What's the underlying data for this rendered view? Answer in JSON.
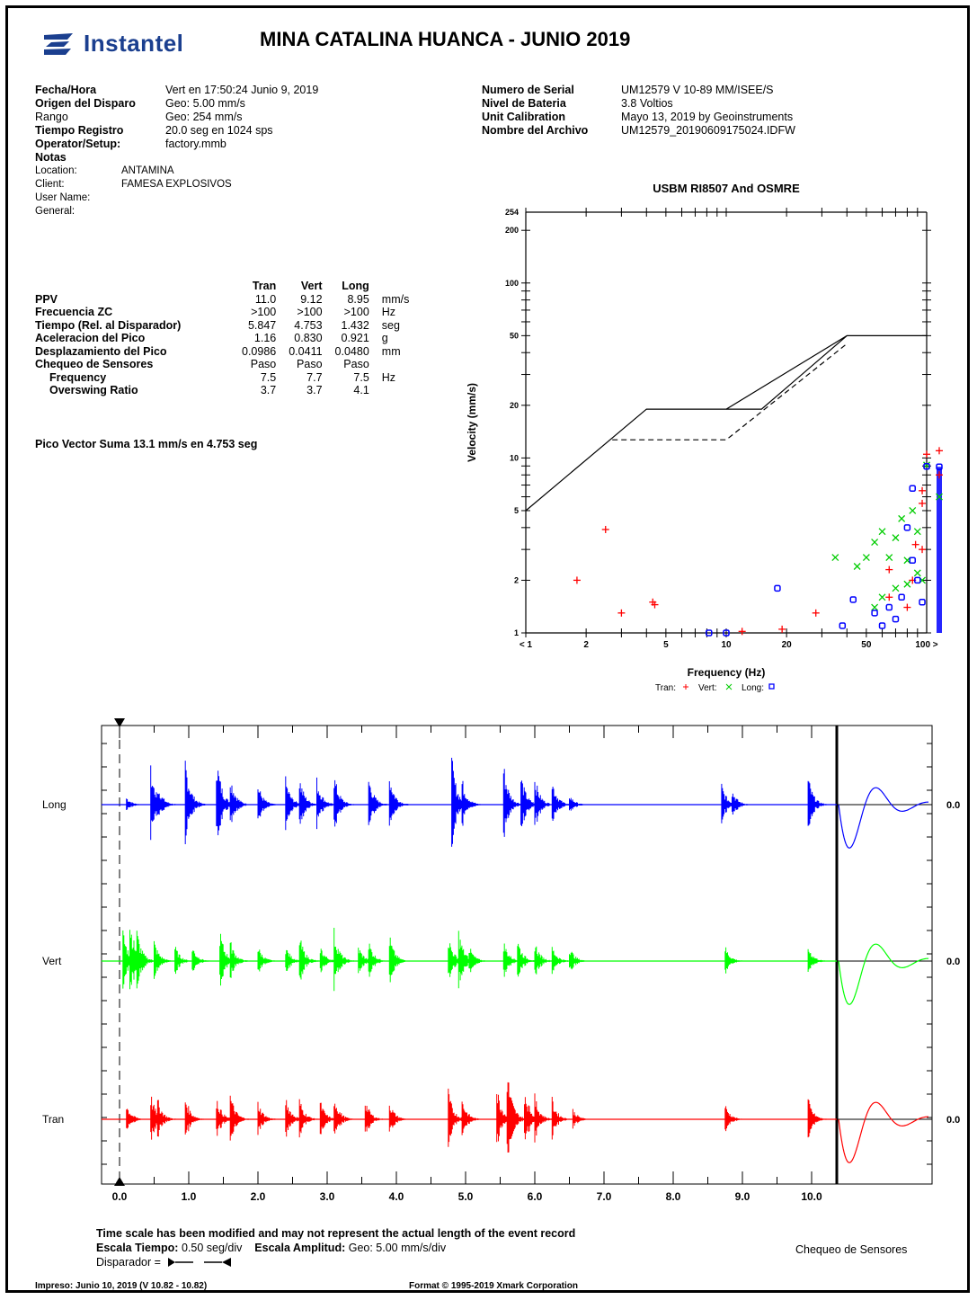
{
  "header": {
    "brand": "Instantel",
    "title": "MINA CATALINA HUANCA - JUNIO 2019"
  },
  "left_info": [
    {
      "label": "Fecha/Hora",
      "value": "Vert en 17:50:24 Junio 9, 2019",
      "bold": true
    },
    {
      "label": "Origen del Disparo",
      "value": "Geo: 5.00 mm/s",
      "bold": true
    },
    {
      "label": "Rango",
      "value": "Geo: 254 mm/s",
      "bold": false
    },
    {
      "label": "Tiempo Registro",
      "value": "20.0 seg en 1024 sps",
      "bold": true
    },
    {
      "label": "Operator/Setup:",
      "value": "factory.mmb",
      "bold": true
    }
  ],
  "notes": {
    "heading": "Notas",
    "rows": [
      {
        "label": "Location:",
        "value": "ANTAMINA"
      },
      {
        "label": "Client:",
        "value": "FAMESA EXPLOSIVOS"
      },
      {
        "label": "User Name:",
        "value": ""
      },
      {
        "label": "General:",
        "value": ""
      }
    ]
  },
  "right_info": [
    {
      "label": "Numero de Serial",
      "value": "UM12579 V 10-89 MM/ISEE/S"
    },
    {
      "label": "Nivel de Bateria",
      "value": "3.8 Voltios"
    },
    {
      "label": "Unit Calibration",
      "value": "Mayo 13, 2019 by Geoinstruments"
    },
    {
      "label": "Nombre del Archivo",
      "value": "UM12579_20190609175024.IDFW"
    }
  ],
  "ppv_table": {
    "headers": [
      "",
      "Tran",
      "Vert",
      "Long",
      ""
    ],
    "rows": [
      {
        "label": "PPV",
        "tran": "11.0",
        "vert": "9.12",
        "long": "8.95",
        "unit": "mm/s",
        "indent": false
      },
      {
        "label": "Frecuencia ZC",
        "tran": ">100",
        "vert": ">100",
        "long": ">100",
        "unit": "Hz",
        "indent": false
      },
      {
        "label": "Tiempo (Rel. al Disparador)",
        "tran": "5.847",
        "vert": "4.753",
        "long": "1.432",
        "unit": "seg",
        "indent": false
      },
      {
        "label": "Aceleracion del Pico",
        "tran": "1.16",
        "vert": "0.830",
        "long": "0.921",
        "unit": "g",
        "indent": false
      },
      {
        "label": "Desplazamiento del Pico",
        "tran": "0.0986",
        "vert": "0.0411",
        "long": "0.0480",
        "unit": "mm",
        "indent": false
      },
      {
        "label": "Chequeo de Sensores",
        "tran": "Paso",
        "vert": "Paso",
        "long": "Paso",
        "unit": "",
        "indent": false
      },
      {
        "label": "Frequency",
        "tran": "7.5",
        "vert": "7.7",
        "long": "7.5",
        "unit": "Hz",
        "indent": true
      },
      {
        "label": "Overswing Ratio",
        "tran": "3.7",
        "vert": "3.7",
        "long": "4.1",
        "unit": "",
        "indent": true
      }
    ]
  },
  "vector_sum": "Pico Vector Suma  13.1 mm/s en 4.753 seg",
  "chart_data": [
    {
      "type": "scatter",
      "title": "USBM RI8507 And OSMRE",
      "xlabel": "Frequency (Hz)",
      "ylabel": "Velocity (mm/s)",
      "x_scale": "log",
      "y_scale": "log",
      "xlim": [
        1,
        100
      ],
      "ylim": [
        1,
        254
      ],
      "x_ticks": [
        {
          "v": 1,
          "label": "< 1"
        },
        {
          "v": 2,
          "label": "2"
        },
        {
          "v": 5,
          "label": "5"
        },
        {
          "v": 10,
          "label": "10"
        },
        {
          "v": 20,
          "label": "20"
        },
        {
          "v": 50,
          "label": "50"
        },
        {
          "v": 100,
          "label": "100 >"
        }
      ],
      "y_ticks": [
        {
          "v": 1,
          "label": "1"
        },
        {
          "v": 2,
          "label": "2"
        },
        {
          "v": 5,
          "label": "5"
        },
        {
          "v": 10,
          "label": "10"
        },
        {
          "v": 20,
          "label": "20"
        },
        {
          "v": 50,
          "label": "50"
        },
        {
          "v": 100,
          "label": "100"
        },
        {
          "v": 200,
          "label": "200"
        },
        {
          "v": 254,
          "label": "254"
        }
      ],
      "limit_lines": [
        {
          "style": "solid",
          "points": [
            [
              1,
              5
            ],
            [
              4,
              19
            ],
            [
              10,
              19
            ],
            [
              40,
              50
            ],
            [
              100,
              50
            ]
          ]
        },
        {
          "style": "solid",
          "points": [
            [
              10,
              19
            ],
            [
              15,
              19
            ],
            [
              40,
              50
            ]
          ]
        },
        {
          "style": "dashed",
          "points": [
            [
              2.7,
              12.7
            ],
            [
              10,
              12.7
            ],
            [
              40,
              45
            ]
          ]
        }
      ],
      "legend": [
        {
          "name": "Tran:",
          "marker": "+",
          "color": "#ff0000"
        },
        {
          "name": "Vert:",
          "marker": "x",
          "color": "#00cc00"
        },
        {
          "name": "Long:",
          "marker": "o",
          "color": "#0000ff"
        }
      ],
      "series": [
        {
          "name": "Tran",
          "color": "#ff0000",
          "marker": "+",
          "points": [
            [
              1.8,
              2.0
            ],
            [
              2.5,
              3.9
            ],
            [
              3.0,
              1.3
            ],
            [
              4.3,
              1.5
            ],
            [
              4.4,
              1.45
            ],
            [
              12,
              1.02
            ],
            [
              19,
              1.05
            ],
            [
              28,
              1.3
            ],
            [
              65,
              1.6
            ],
            [
              65,
              2.3
            ],
            [
              80,
              1.4
            ],
            [
              85,
              2.0
            ],
            [
              88,
              3.2
            ],
            [
              95,
              6.5
            ],
            [
              95,
              5.5
            ],
            [
              95,
              3.0
            ],
            [
              100,
              10.5
            ],
            [
              105,
              11.0
            ],
            [
              102,
              8.0
            ]
          ]
        },
        {
          "name": "Vert",
          "color": "#00cc00",
          "marker": "x",
          "points": [
            [
              35,
              2.7
            ],
            [
              45,
              2.4
            ],
            [
              50,
              2.7
            ],
            [
              55,
              3.3
            ],
            [
              60,
              3.8
            ],
            [
              65,
              2.7
            ],
            [
              70,
              3.5
            ],
            [
              75,
              4.5
            ],
            [
              80,
              2.6
            ],
            [
              85,
              5.0
            ],
            [
              90,
              3.8
            ],
            [
              55,
              1.4
            ],
            [
              60,
              1.6
            ],
            [
              70,
              1.8
            ],
            [
              80,
              1.9
            ],
            [
              90,
              2.2
            ],
            [
              95,
              2.0
            ],
            [
              100,
              9.1
            ],
            [
              105,
              6.0
            ]
          ]
        },
        {
          "name": "Long",
          "color": "#0000ff",
          "marker": "o",
          "points": [
            [
              8.2,
              1.0
            ],
            [
              10,
              1.0
            ],
            [
              18,
              1.8
            ],
            [
              38,
              1.1
            ],
            [
              43,
              1.55
            ],
            [
              55,
              1.3
            ],
            [
              60,
              1.1
            ],
            [
              65,
              1.4
            ],
            [
              70,
              1.2
            ],
            [
              75,
              1.6
            ],
            [
              80,
              4.0
            ],
            [
              85,
              6.7
            ],
            [
              85,
              2.6
            ],
            [
              90,
              2.0
            ],
            [
              95,
              1.5
            ],
            [
              100,
              8.95
            ],
            [
              105,
              8.9
            ]
          ]
        }
      ]
    },
    {
      "type": "line",
      "title": "",
      "xlabel": "",
      "x_ticks": [
        "0.0",
        "1.0",
        "2.0",
        "3.0",
        "4.0",
        "5.0",
        "6.0",
        "7.0",
        "8.0",
        "9.0",
        "10.0"
      ],
      "xlim": [
        0,
        10.3
      ],
      "unit": "seg",
      "series": [
        {
          "name": "Long",
          "color": "#0000ff",
          "zero_label": "0.0",
          "bursts": [
            [
              0.1,
              0.15
            ],
            [
              0.45,
              0.7
            ],
            [
              0.55,
              0.4
            ],
            [
              0.95,
              0.9
            ],
            [
              1.4,
              1.0
            ],
            [
              1.6,
              0.6
            ],
            [
              2.0,
              0.4
            ],
            [
              2.4,
              0.5
            ],
            [
              2.6,
              0.55
            ],
            [
              2.85,
              0.5
            ],
            [
              3.1,
              0.6
            ],
            [
              3.6,
              0.55
            ],
            [
              3.9,
              0.6
            ],
            [
              4.8,
              0.9
            ],
            [
              4.95,
              0.5
            ],
            [
              5.55,
              0.8
            ],
            [
              5.8,
              0.6
            ],
            [
              6.0,
              0.55
            ],
            [
              6.25,
              0.5
            ],
            [
              6.5,
              0.2
            ],
            [
              8.7,
              0.4
            ],
            [
              8.85,
              0.3
            ],
            [
              9.95,
              0.55
            ]
          ]
        },
        {
          "name": "Vert",
          "color": "#00ff00",
          "zero_label": "0.0",
          "bursts": [
            [
              0.05,
              0.6
            ],
            [
              0.15,
              0.85
            ],
            [
              0.25,
              0.6
            ],
            [
              0.5,
              0.4
            ],
            [
              0.8,
              0.3
            ],
            [
              1.05,
              0.3
            ],
            [
              1.45,
              0.6
            ],
            [
              1.6,
              0.4
            ],
            [
              2.0,
              0.3
            ],
            [
              2.4,
              0.3
            ],
            [
              2.6,
              0.5
            ],
            [
              2.9,
              0.3
            ],
            [
              3.1,
              0.6
            ],
            [
              3.45,
              0.3
            ],
            [
              3.6,
              0.4
            ],
            [
              3.9,
              0.5
            ],
            [
              4.75,
              0.5
            ],
            [
              4.9,
              0.6
            ],
            [
              5.05,
              0.3
            ],
            [
              5.55,
              0.4
            ],
            [
              5.75,
              0.45
            ],
            [
              6.0,
              0.4
            ],
            [
              6.25,
              0.3
            ],
            [
              6.5,
              0.3
            ],
            [
              8.75,
              0.3
            ],
            [
              9.95,
              0.3
            ]
          ]
        },
        {
          "name": "Tran",
          "color": "#ff0000",
          "zero_label": "0.0",
          "bursts": [
            [
              0.1,
              0.3
            ],
            [
              0.45,
              0.5
            ],
            [
              0.55,
              0.4
            ],
            [
              0.95,
              0.45
            ],
            [
              1.4,
              0.45
            ],
            [
              1.6,
              0.5
            ],
            [
              2.0,
              0.35
            ],
            [
              2.4,
              0.45
            ],
            [
              2.6,
              0.4
            ],
            [
              2.9,
              0.35
            ],
            [
              3.1,
              0.5
            ],
            [
              3.55,
              0.4
            ],
            [
              3.9,
              0.35
            ],
            [
              4.75,
              0.55
            ],
            [
              4.95,
              0.4
            ],
            [
              5.45,
              0.65
            ],
            [
              5.6,
              1.0
            ],
            [
              5.85,
              0.65
            ],
            [
              6.0,
              0.45
            ],
            [
              6.25,
              0.4
            ],
            [
              6.55,
              0.2
            ],
            [
              8.75,
              0.3
            ],
            [
              9.95,
              0.4
            ]
          ]
        }
      ]
    }
  ],
  "footer": {
    "line1": "Time scale has been modified and may not represent the actual length of the event record",
    "escala_tiempo_label": "Escala Tiempo:",
    "escala_tiempo_value": "0.50 seg/div",
    "escala_amp_label": "Escala Amplitud:",
    "escala_amp_value": "Geo: 5.00 mm/s/div",
    "disparador_label": "Disparador =",
    "sensor_check": "Chequeo de Sensores",
    "printed": "Impreso: Junio 10, 2019 (V 10.82 - 10.82)",
    "format": "Format © 1995-2019 Xmark Corporation"
  }
}
